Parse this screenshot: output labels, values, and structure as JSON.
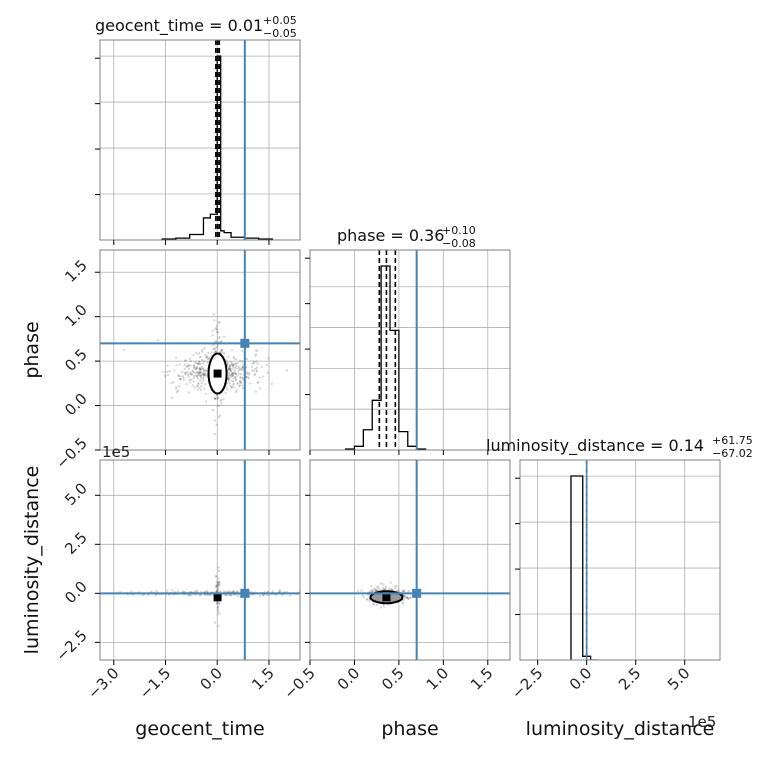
{
  "colors": {
    "truth": "#4682b4",
    "hist": "#000000",
    "grid": "#b0b0b0",
    "frame": "#808080",
    "scatter": "#555555"
  },
  "chart_data": {
    "type": "corner",
    "parameters": [
      "geocent_time",
      "phase",
      "luminosity_distance"
    ],
    "titles": [
      {
        "name": "geocent_time",
        "median": "0.01",
        "upper": "+0.05",
        "lower": "−0.05"
      },
      {
        "name": "phase",
        "median": "0.36",
        "upper": "+0.10",
        "lower": "−0.08"
      },
      {
        "name": "luminosity_distance",
        "median": "0.14",
        "upper": "+61.75",
        "lower": "−67.02"
      }
    ],
    "offset_labels": {
      "luminosity_distance_y": "1e5",
      "luminosity_distance_x": "1e5"
    },
    "truths": {
      "geocent_time": 0.8,
      "phase": 0.7,
      "luminosity_distance": 0.0
    },
    "ranges": {
      "geocent_time": [
        -3.4,
        2.4
      ],
      "phase": [
        -0.5,
        1.75
      ],
      "luminosity_distance": [
        -3.4,
        6.8
      ]
    },
    "ticks": {
      "geocent_time": [
        "−3.0",
        "−1.5",
        "0.0",
        "1.5"
      ],
      "phase_x": [
        "−0.5",
        "0.0",
        "0.5",
        "1.0",
        "1.5"
      ],
      "phase_y": [
        "−0.5",
        "0.0",
        "0.5",
        "1.0",
        "1.5"
      ],
      "luminosity_distance_x": [
        "−2.5",
        "0.0",
        "2.5",
        "5.0"
      ],
      "luminosity_distance_y": [
        "−2.5",
        "0.0",
        "2.5",
        "5.0"
      ]
    },
    "quantiles": {
      "geocent_time": [
        -0.04,
        0.01,
        0.06
      ],
      "phase": [
        0.28,
        0.36,
        0.46
      ],
      "luminosity_distance": [
        0.0
      ]
    },
    "hist_geocent_time": {
      "edges": [
        -1.6,
        -1.2,
        -0.8,
        -0.4,
        -0.2,
        0.0,
        0.1,
        0.2,
        0.4,
        0.8,
        1.2,
        1.6
      ],
      "values": [
        0.005,
        0.01,
        0.03,
        0.12,
        0.14,
        1.0,
        0.05,
        0.04,
        0.015,
        0.01,
        0.005
      ]
    },
    "hist_phase": {
      "edges": [
        -0.1,
        0.0,
        0.1,
        0.2,
        0.3,
        0.4,
        0.5,
        0.6,
        0.7,
        0.8
      ],
      "values": [
        0.005,
        0.02,
        0.11,
        0.27,
        1.0,
        0.65,
        0.1,
        0.02,
        0.005
      ]
    },
    "hist_luminosity_distance": {
      "edges": [
        -0.8,
        -0.2,
        0.2,
        0.6
      ],
      "values": [
        1.0,
        0.02,
        0.0
      ]
    }
  }
}
